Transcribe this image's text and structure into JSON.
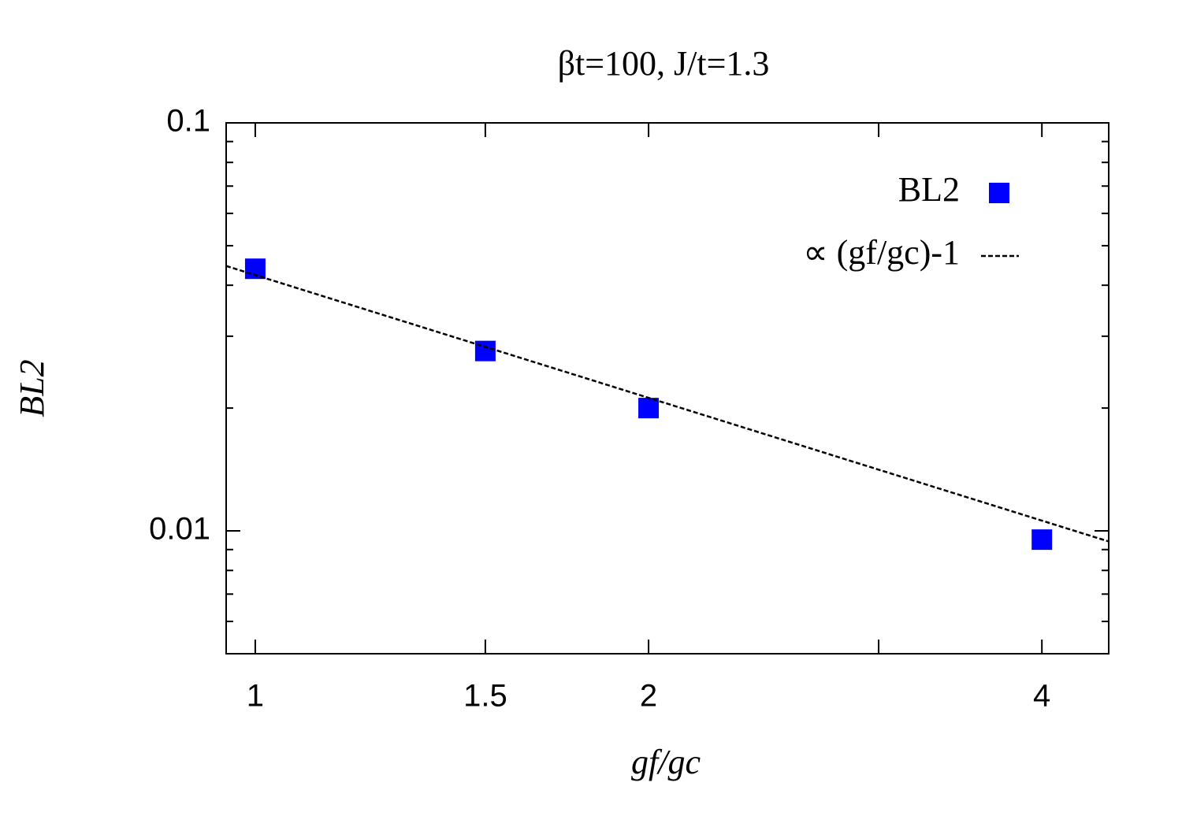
{
  "chart_data": {
    "type": "scatter",
    "title": "βt=100, J/t=1.3",
    "x_label": "gf/gc",
    "y_label": "BL2",
    "x_log": true,
    "y_log": true,
    "xlim": [
      0.95,
      4.5
    ],
    "ylim": [
      0.005,
      0.1
    ],
    "xticks": [
      1,
      1.5,
      2,
      4
    ],
    "x_minor_ticks": [
      3
    ],
    "yticks": [
      0.01,
      0.1
    ],
    "y_minor_ticks": [
      0.006,
      0.007,
      0.008,
      0.009,
      0.02,
      0.03,
      0.04,
      0.05,
      0.06,
      0.07,
      0.08,
      0.09
    ],
    "legend": "top-right",
    "series": [
      {
        "name": "BL2",
        "kind": "points",
        "color": "#0000ff",
        "x": [
          1,
          1.5,
          2,
          4
        ],
        "values": [
          0.0439,
          0.0276,
          0.02,
          0.00952
        ]
      },
      {
        "name": "∝ (gf/gc)-1",
        "kind": "dashed-line",
        "color": "#000000",
        "x": [
          0.95,
          4.5
        ],
        "values": [
          0.0446,
          0.00942
        ]
      }
    ]
  }
}
